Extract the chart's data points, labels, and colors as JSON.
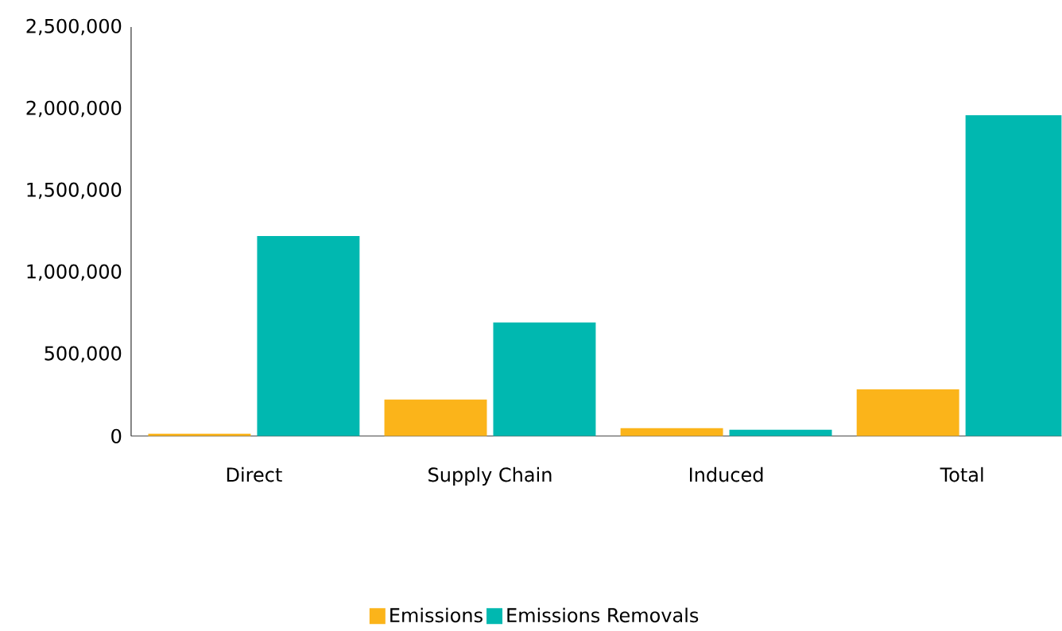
{
  "chart_data": {
    "type": "bar",
    "categories": [
      "Direct",
      "Supply Chain",
      "Induced",
      "Total"
    ],
    "series": [
      {
        "name": "Emissions",
        "color": "#fbb41a",
        "values": [
          15000,
          223000,
          48000,
          286000
        ]
      },
      {
        "name": "Emissions Removals",
        "color": "#00b8b0",
        "values": [
          1223000,
          694000,
          39000,
          1961000
        ]
      }
    ],
    "ylim": [
      0,
      2500000
    ],
    "yticks": [
      {
        "value": 0,
        "label": "0"
      },
      {
        "value": 500000,
        "label": "500,000"
      },
      {
        "value": 1000000,
        "label": "1,000,000"
      },
      {
        "value": 1500000,
        "label": "1,500,000"
      },
      {
        "value": 2000000,
        "label": "2,000,000"
      },
      {
        "value": 2500000,
        "label": "2,500,000"
      }
    ],
    "grid": false,
    "legend": "bottom"
  }
}
